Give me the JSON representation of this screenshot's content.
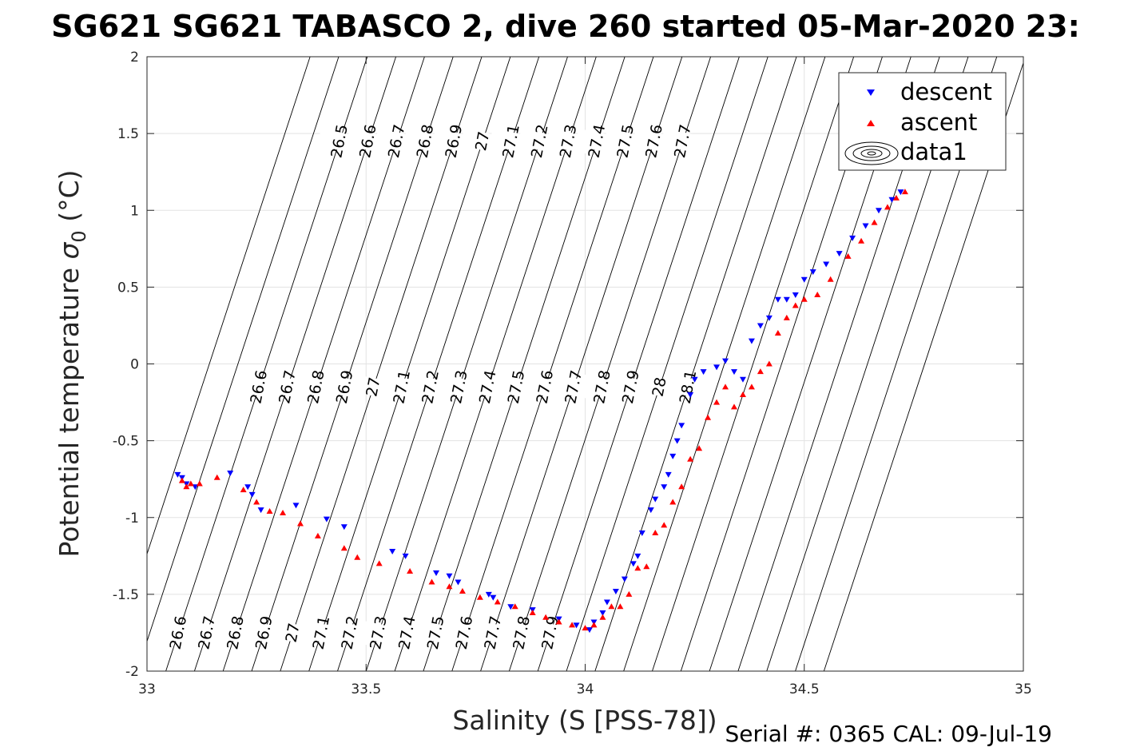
{
  "chart_data": {
    "type": "scatter",
    "title": "SG621 SG621 TABASCO 2, dive 260 started 05-Mar-2020 23:",
    "xlabel": "Salinity (S [PSS-78])",
    "ylabel_text": "Potential temperature ",
    "ylabel_sigma": "σ",
    "ylabel_sub": "0",
    "ylabel_unit": " (°C)",
    "xlim": [
      33,
      35
    ],
    "ylim": [
      -2,
      2
    ],
    "x_ticks": [
      "33",
      "33.5",
      "34",
      "34.5",
      "35"
    ],
    "y_ticks": [
      "2",
      "1.5",
      "1",
      "0.5",
      "0",
      "-0.5",
      "-1",
      "-1.5",
      "-2"
    ],
    "grid": true,
    "legend_position": "top-right",
    "legend": [
      "descent",
      "ascent",
      "data1"
    ],
    "series": [
      {
        "name": "descent",
        "marker": "triangle-down",
        "color": "#0000ff",
        "x": [
          33.07,
          33.08,
          33.09,
          33.11,
          33.19,
          33.23,
          33.24,
          33.26,
          33.34,
          33.41,
          33.45,
          33.56,
          33.59,
          33.66,
          33.69,
          33.71,
          33.78,
          33.79,
          33.83,
          33.88,
          33.94,
          33.98,
          34.01,
          34.02,
          34.04,
          34.05,
          34.07,
          34.09,
          34.11,
          34.12,
          34.13,
          34.15,
          34.16,
          34.18,
          34.19,
          34.2,
          34.21,
          34.22,
          34.24,
          34.25,
          34.27,
          34.3,
          34.32,
          34.34,
          34.36,
          34.38,
          34.4,
          34.42,
          34.44,
          34.46,
          34.48,
          34.5,
          34.52,
          34.55,
          34.58,
          34.61,
          34.64,
          34.67,
          34.7,
          34.72
        ],
        "y": [
          -0.72,
          -0.74,
          -0.78,
          -0.8,
          -0.71,
          -0.8,
          -0.85,
          -0.95,
          -0.92,
          -1.01,
          -1.06,
          -1.22,
          -1.25,
          -1.36,
          -1.38,
          -1.42,
          -1.5,
          -1.52,
          -1.58,
          -1.6,
          -1.66,
          -1.7,
          -1.73,
          -1.68,
          -1.62,
          -1.55,
          -1.48,
          -1.4,
          -1.3,
          -1.25,
          -1.1,
          -0.95,
          -0.88,
          -0.8,
          -0.72,
          -0.6,
          -0.5,
          -0.4,
          -0.2,
          -0.1,
          -0.05,
          -0.02,
          0.02,
          -0.05,
          -0.1,
          0.15,
          0.25,
          0.3,
          0.42,
          0.42,
          0.45,
          0.55,
          0.6,
          0.65,
          0.72,
          0.82,
          0.9,
          1.0,
          1.07,
          1.12
        ]
      },
      {
        "name": "ascent",
        "marker": "triangle-up",
        "color": "#ff0000",
        "x": [
          33.08,
          33.09,
          33.1,
          33.12,
          33.16,
          33.22,
          33.25,
          33.28,
          33.31,
          33.35,
          33.39,
          33.45,
          33.48,
          33.53,
          33.6,
          33.65,
          33.69,
          33.72,
          33.76,
          33.8,
          33.84,
          33.88,
          33.91,
          33.94,
          33.97,
          34.0,
          34.02,
          34.04,
          34.06,
          34.08,
          34.1,
          34.12,
          34.14,
          34.16,
          34.18,
          34.2,
          34.22,
          34.24,
          34.26,
          34.28,
          34.3,
          34.32,
          34.34,
          34.36,
          34.38,
          34.4,
          34.42,
          34.44,
          34.46,
          34.48,
          34.5,
          34.53,
          34.56,
          34.6,
          34.63,
          34.66,
          34.69,
          34.71,
          34.73
        ],
        "y": [
          -0.76,
          -0.8,
          -0.78,
          -0.78,
          -0.74,
          -0.82,
          -0.9,
          -0.96,
          -0.97,
          -1.04,
          -1.12,
          -1.2,
          -1.26,
          -1.3,
          -1.35,
          -1.42,
          -1.45,
          -1.48,
          -1.52,
          -1.55,
          -1.58,
          -1.62,
          -1.65,
          -1.68,
          -1.7,
          -1.72,
          -1.7,
          -1.65,
          -1.58,
          -1.58,
          -1.5,
          -1.33,
          -1.32,
          -1.1,
          -1.05,
          -0.9,
          -0.8,
          -0.62,
          -0.55,
          -0.35,
          -0.25,
          -0.15,
          -0.28,
          -0.2,
          -0.15,
          -0.05,
          0.0,
          0.2,
          0.3,
          0.38,
          0.42,
          0.45,
          0.55,
          0.7,
          0.8,
          0.92,
          1.02,
          1.08,
          1.12
        ]
      }
    ],
    "density_contours": {
      "name": "data1",
      "label_values": [
        "26.5",
        "26.6",
        "26.7",
        "26.8",
        "26.9",
        "27",
        "27.1",
        "27.2",
        "27.3",
        "27.4",
        "27.5",
        "27.6",
        "27.7",
        "27.8",
        "27.9",
        "28",
        "28.1"
      ]
    },
    "footer": "Serial #: 0365  CAL: 09-Jul-19"
  }
}
